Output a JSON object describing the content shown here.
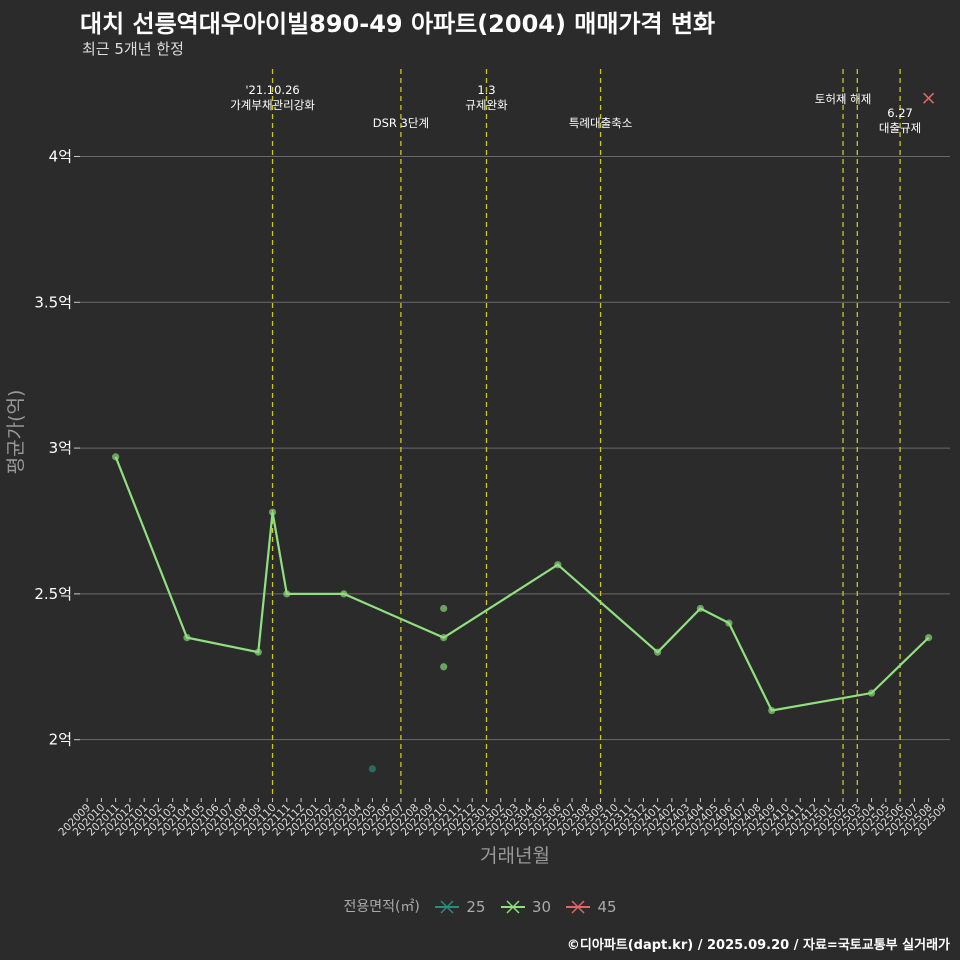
{
  "header": {
    "title": "대치 선릉역대우아이빌890-49 아파트(2004) 매매가격 변화",
    "subtitle": "최근 5개년 한정"
  },
  "footer": {
    "source": "©디아파트(dapt.kr) / 2025.09.20 / 자료=국토교통부 실거래가"
  },
  "legend": {
    "title": "전용면적(㎡)",
    "items": [
      {
        "label": "25",
        "color": "#2a8c7e"
      },
      {
        "label": "30",
        "color": "#90e080"
      },
      {
        "label": "45",
        "color": "#e06666"
      }
    ]
  },
  "chart_data": {
    "type": "line",
    "title": "대치 선릉역대우아이빌890-49 아파트(2004) 매매가격 변화",
    "subtitle": "최근 5개년 한정",
    "xlabel": "거래년월",
    "ylabel": "평균가(억)",
    "ylim": [
      1.8,
      4.3
    ],
    "y_ticks": [
      2,
      2.5,
      3,
      3.5,
      4
    ],
    "y_tick_labels": [
      "2억",
      "2.5억",
      "3억",
      "3.5억",
      "4억"
    ],
    "x_categories": [
      "202009",
      "202010",
      "202011",
      "202012",
      "202101",
      "202102",
      "202103",
      "202104",
      "202105",
      "202106",
      "202107",
      "202108",
      "202109",
      "202110",
      "202111",
      "202112",
      "202201",
      "202202",
      "202203",
      "202204",
      "202205",
      "202206",
      "202207",
      "202208",
      "202209",
      "202210",
      "202211",
      "202212",
      "202301",
      "202302",
      "202303",
      "202304",
      "202305",
      "202306",
      "202307",
      "202308",
      "202309",
      "202310",
      "202311",
      "202312",
      "202401",
      "202402",
      "202403",
      "202404",
      "202405",
      "202406",
      "202407",
      "202408",
      "202409",
      "202410",
      "202411",
      "202412",
      "202501",
      "202502",
      "202503",
      "202504",
      "202505",
      "202506",
      "202507",
      "202508",
      "202509"
    ],
    "series": [
      {
        "name": "25",
        "color": "#2a8c7e",
        "line": false,
        "points": [
          {
            "x": "202205",
            "y": 1.9
          }
        ]
      },
      {
        "name": "30",
        "color": "#90e080",
        "line": true,
        "points": [
          {
            "x": "202011",
            "y": 2.97
          },
          {
            "x": "202104",
            "y": 2.35
          },
          {
            "x": "202109",
            "y": 2.3
          },
          {
            "x": "202110",
            "y": 2.78
          },
          {
            "x": "202111",
            "y": 2.5
          },
          {
            "x": "202203",
            "y": 2.5
          },
          {
            "x": "202210",
            "y": 2.35
          },
          {
            "x": "202306",
            "y": 2.6
          },
          {
            "x": "202401",
            "y": 2.3
          },
          {
            "x": "202404",
            "y": 2.45
          },
          {
            "x": "202406",
            "y": 2.4
          },
          {
            "x": "202409",
            "y": 2.1
          },
          {
            "x": "202504",
            "y": 2.16
          },
          {
            "x": "202508",
            "y": 2.35
          }
        ],
        "extra_points": [
          {
            "x": "202210",
            "y": 2.45
          },
          {
            "x": "202210",
            "y": 2.25
          }
        ]
      },
      {
        "name": "45",
        "color": "#e06666",
        "line": false,
        "points": [
          {
            "x": "202508",
            "y": 4.2
          }
        ]
      }
    ],
    "events": [
      {
        "x": "202110",
        "lines": [
          "'21.10.26",
          "가계부채관리강화"
        ],
        "row": "top"
      },
      {
        "x": "202207",
        "lines": [
          "DSR 3단계"
        ],
        "row": "low"
      },
      {
        "x": "202301",
        "lines": [
          "1.3",
          "규제완화"
        ],
        "row": "top"
      },
      {
        "x": "202309",
        "lines": [
          "특례대출축소"
        ],
        "row": "low"
      },
      {
        "x": "202502",
        "lines": [
          "토허제 해제"
        ],
        "row": "mid"
      },
      {
        "x": "202503",
        "lines": [],
        "row": "mid"
      },
      {
        "x": "202506",
        "lines": [
          "6.27",
          "대출규제"
        ],
        "row": "low2"
      }
    ]
  }
}
